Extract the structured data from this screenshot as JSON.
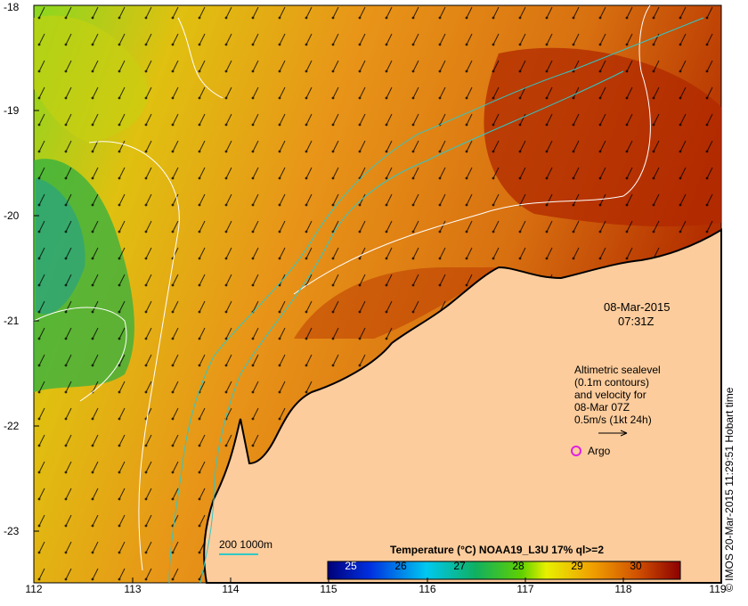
{
  "date": "08-Mar-2015",
  "time": "07:31Z",
  "legend": {
    "line1": "Altimetric sealevel",
    "line2": "(0.1m contours)",
    "line3": "and velocity for",
    "line4": "08-Mar 07Z",
    "line5": "0.5m/s (1kt 24h)",
    "argo": "Argo"
  },
  "depth_legend": "200  1000m",
  "stamp": "© IMOS 20-Mar-2015 11:29:51 Hobart time",
  "colorbar": {
    "title": "Temperature (°C) NOAA19_L3U 17% ql>=2",
    "ticks": [
      "25",
      "26",
      "27",
      "28",
      "29",
      "30"
    ]
  },
  "x_ticks": [
    "112",
    "113",
    "114",
    "115",
    "116",
    "117",
    "118",
    "119"
  ],
  "y_ticks": [
    "-18",
    "-19",
    "-20",
    "-21",
    "-22",
    "-23"
  ],
  "colors": {
    "land": "#fccc9c",
    "contour_white": "#ffffff",
    "isobath": "#30c8c8",
    "argo": "#e020e0"
  }
}
